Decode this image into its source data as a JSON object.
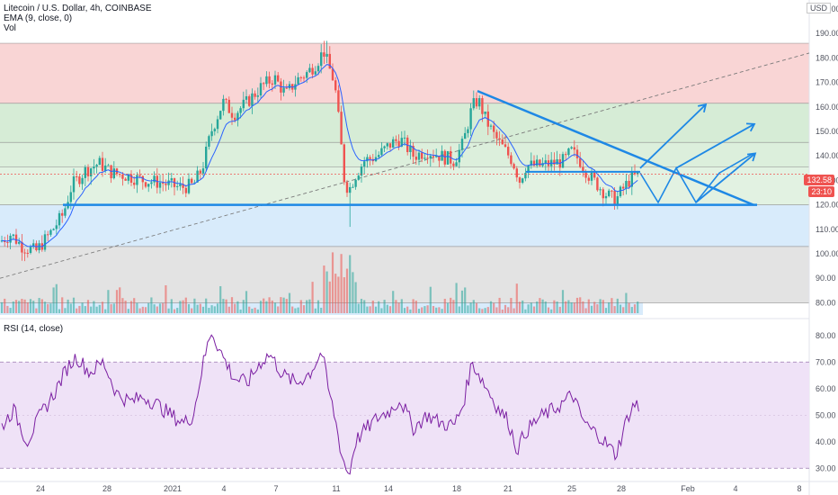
{
  "legend": {
    "symbol": "Litecoin / U.S. Dollar, 4h, COINBASE",
    "ema": "EMA (9, close, 0)",
    "vol": "Vol"
  },
  "rsi_legend": "RSI (14, close)",
  "currency_label": "USD",
  "last_price": "132.58",
  "countdown": "23:10",
  "colors": {
    "up": "#26a69a",
    "down": "#ef5350",
    "ema": "#2962ff",
    "drawing": "#1e88e5",
    "rsi": "#7b1fa2",
    "zone_red": "#f9d5d5",
    "zone_green": "#d6ecd6",
    "zone_blue": "#d8ebfb",
    "zone_grey": "#e3e3e3",
    "rsi_band": "#efe2f7"
  },
  "chart_data": [
    {
      "type": "candlestick",
      "name": "price",
      "ylim": [
        75,
        200
      ],
      "y_ticks": [
        "200.00",
        "190.00",
        "180.00",
        "170.00",
        "160.00",
        "150.00",
        "140.00",
        "130.00",
        "120.00",
        "110.00",
        "100.00",
        "90.00",
        "80.00"
      ],
      "x_ticks": [
        "24",
        "28",
        "2021",
        "4",
        "7",
        "11",
        "14",
        "18",
        "21",
        "25",
        "28",
        "Feb",
        "4",
        "8"
      ],
      "zone_levels": [
        186,
        161.5,
        145.5,
        135.5,
        120,
        103,
        80
      ],
      "support_level": 120,
      "resistance_start": 166.5,
      "range_level": 133.5,
      "ema_period": 9
    },
    {
      "type": "line",
      "name": "RSI",
      "ylim": [
        25,
        85
      ],
      "y_ticks": [
        "80.00",
        "70.00",
        "60.00",
        "50.00",
        "40.00",
        "30.00"
      ],
      "band": [
        30,
        70
      ]
    }
  ]
}
